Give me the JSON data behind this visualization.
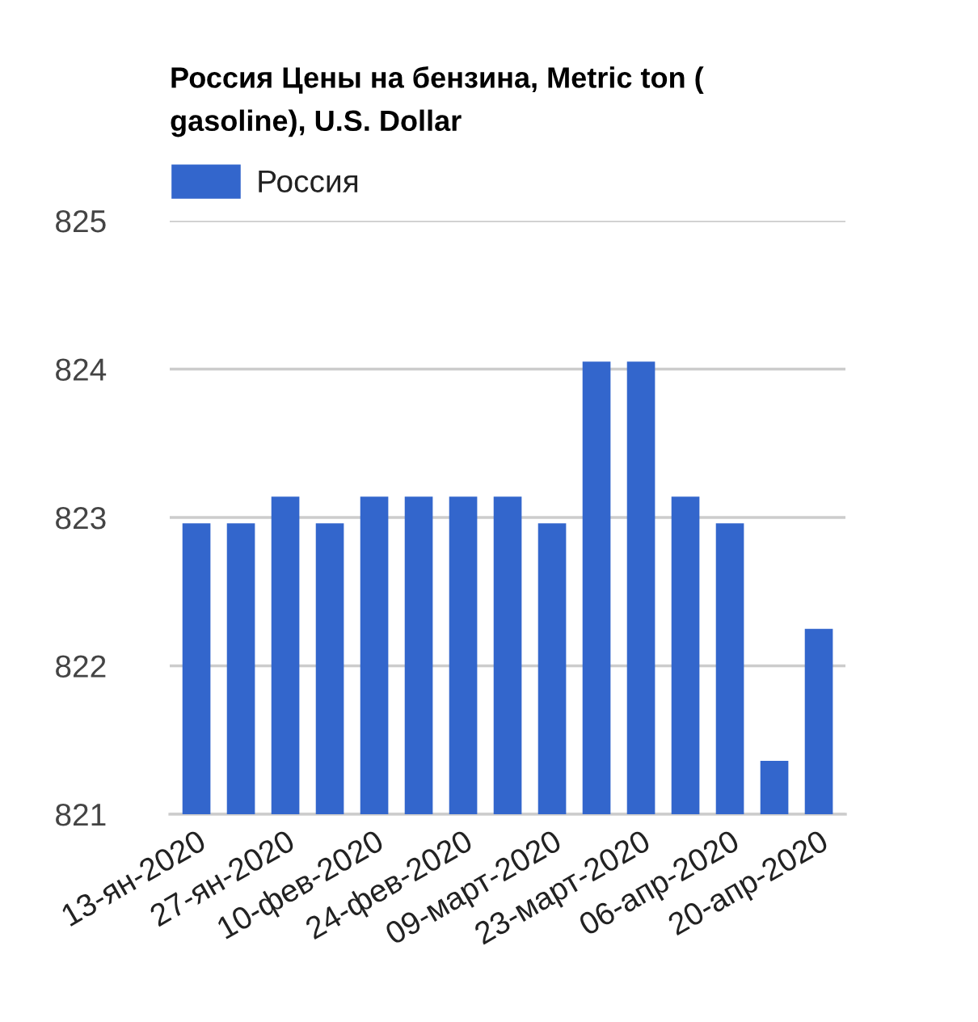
{
  "chart_data": {
    "type": "bar",
    "title": "Россия Цены на бензина, Metric ton (\ngasoline), U.S. Dollar",
    "categories": [
      "13-ян-2020",
      null,
      "27-ян-2020",
      null,
      "10-фев-2020",
      null,
      "24-фев-2020",
      null,
      "09-март-2020",
      null,
      "23-март-2020",
      null,
      "06-апр-2020",
      null,
      "20-апр-2020"
    ],
    "series": [
      {
        "name": "Россия",
        "color": "#3366cc",
        "values": [
          822.96,
          822.96,
          823.14,
          822.96,
          823.14,
          823.14,
          823.14,
          823.14,
          822.96,
          824.05,
          824.05,
          823.14,
          822.96,
          821.36,
          822.25
        ]
      }
    ],
    "ylim": [
      821,
      825
    ],
    "yticks": [
      821,
      822,
      823,
      824,
      825
    ],
    "grid": "y",
    "legend": "top left"
  }
}
